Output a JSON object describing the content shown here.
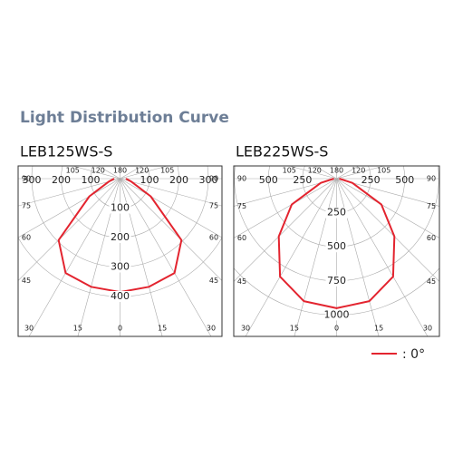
{
  "title": "Light Distribution Curve",
  "legend": {
    "name": ": 0°",
    "color": "#e3242f"
  },
  "chart_data": [
    {
      "type": "polar",
      "title": "LEB125WS-S",
      "color": "#e3242f",
      "angles": [
        -90,
        -75,
        -60,
        -45,
        -30,
        -15,
        0,
        15,
        30,
        45,
        60,
        75,
        90
      ],
      "values": [
        20,
        40,
        120,
        295,
        370,
        380,
        385,
        380,
        370,
        295,
        120,
        40,
        20
      ],
      "rlim": [
        0,
        560
      ],
      "rticks": [
        100,
        200,
        300,
        400
      ],
      "angle_ticks": [
        0,
        15,
        30,
        45,
        60,
        75,
        90,
        105,
        120,
        180
      ]
    },
    {
      "type": "polar",
      "title": "LEB225WS-S",
      "color": "#e3242f",
      "angles": [
        -90,
        -75,
        -60,
        -45,
        -30,
        -15,
        0,
        15,
        30,
        45,
        60,
        75,
        90
      ],
      "values": [
        20,
        120,
        380,
        600,
        830,
        930,
        950,
        930,
        830,
        600,
        380,
        120,
        20
      ],
      "rlim": [
        0,
        1210
      ],
      "rticks": [
        250,
        500,
        750,
        1000
      ],
      "angle_ticks": [
        0,
        15,
        30,
        45,
        60,
        75,
        90,
        105,
        120,
        180
      ]
    }
  ]
}
